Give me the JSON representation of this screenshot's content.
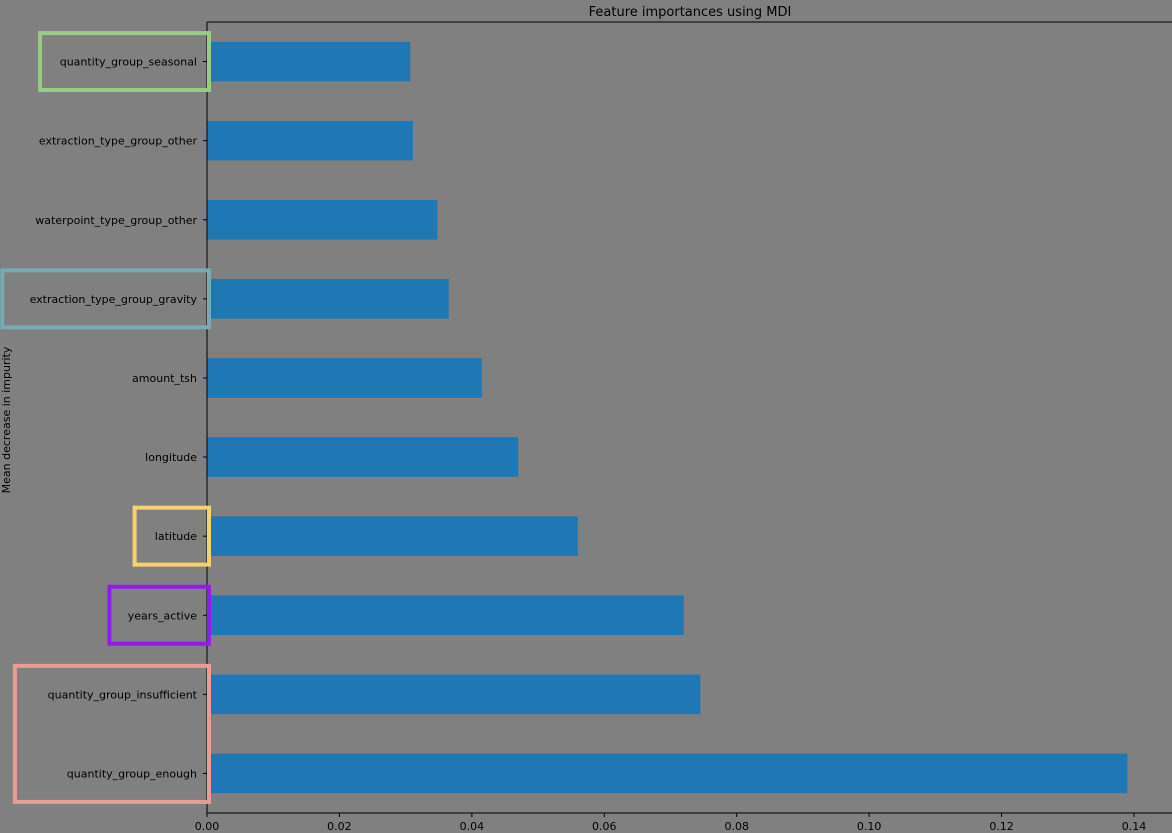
{
  "chart_data": {
    "type": "bar",
    "orientation": "horizontal",
    "title": "Feature importances using MDI",
    "ylabel": "Mean decrease in impurity",
    "xlabel": "",
    "xlim": [
      0.0,
      0.145
    ],
    "xticks": [
      "0.00",
      "0.02",
      "0.04",
      "0.06",
      "0.08",
      "0.10",
      "0.12",
      "0.14"
    ],
    "categories": [
      "quantity_group_enough",
      "quantity_group_insufficient",
      "years_active",
      "latitude",
      "longitude",
      "amount_tsh",
      "extraction_type_group_gravity",
      "waterpoint_type_group_other",
      "extraction_type_group_other",
      "quantity_group_seasonal"
    ],
    "values": [
      0.139,
      0.0745,
      0.072,
      0.056,
      0.047,
      0.0415,
      0.0365,
      0.0348,
      0.0311,
      0.0307
    ],
    "bar_color": "#1f77b4",
    "background": "#808080",
    "grid": false,
    "highlights": [
      {
        "categories": [
          "quantity_group_seasonal"
        ],
        "color": "#98cc85"
      },
      {
        "categories": [
          "extraction_type_group_gravity"
        ],
        "color": "#79a9b4"
      },
      {
        "categories": [
          "latitude"
        ],
        "color": "#f5d26f"
      },
      {
        "categories": [
          "years_active"
        ],
        "color": "#8f1df0"
      },
      {
        "categories": [
          "quantity_group_insufficient",
          "quantity_group_enough"
        ],
        "color": "#ec9a96"
      }
    ]
  }
}
